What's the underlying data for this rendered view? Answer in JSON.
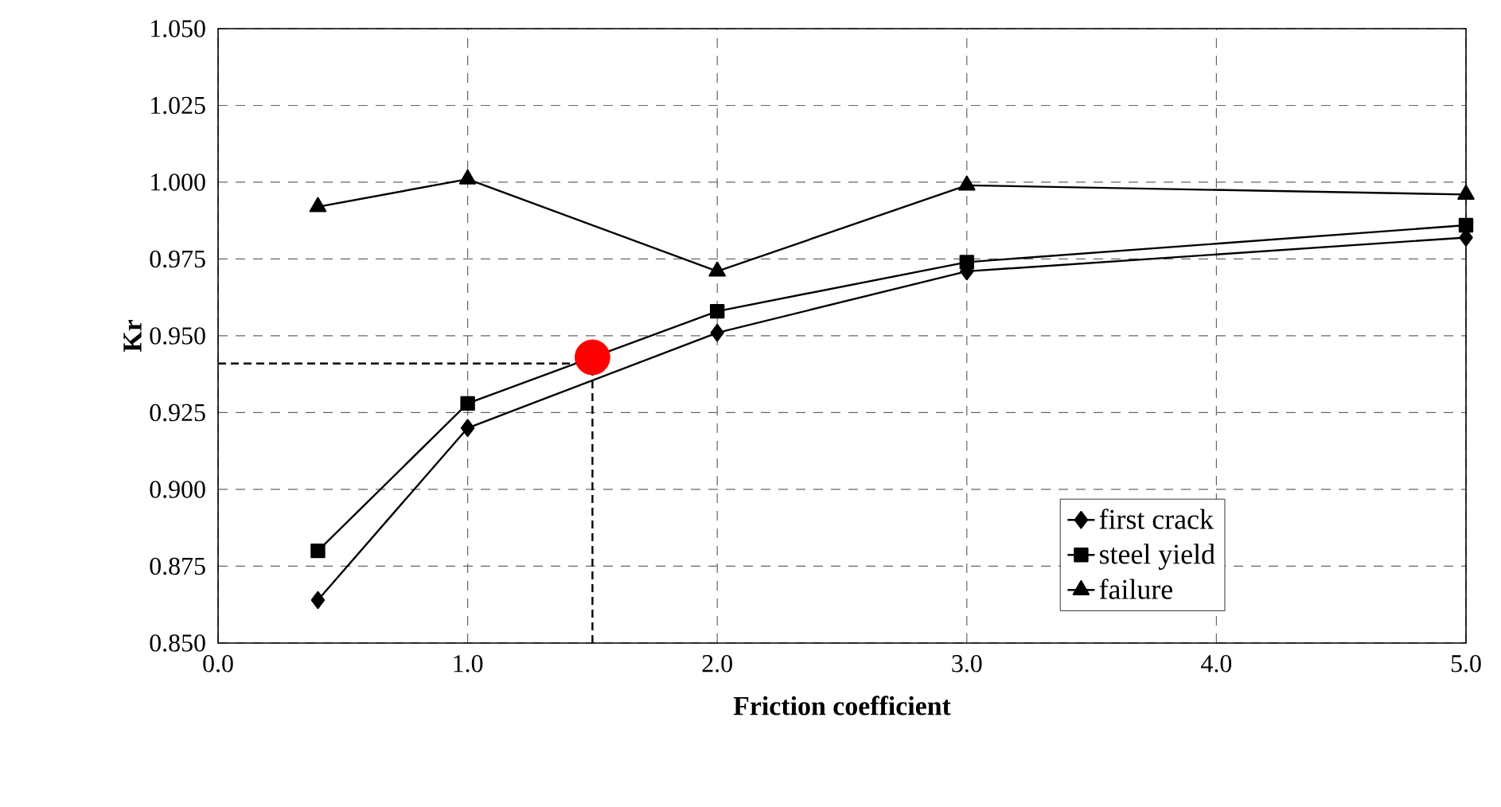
{
  "chart_data": {
    "type": "line",
    "xlabel": "Friction coefficient",
    "ylabel": "Kr",
    "xlim": [
      0,
      5
    ],
    "ylim": [
      0.85,
      1.05
    ],
    "xticks": [
      {
        "value": 0,
        "label": "0.0"
      },
      {
        "value": 1,
        "label": "1.0"
      },
      {
        "value": 2,
        "label": "2.0"
      },
      {
        "value": 3,
        "label": "3.0"
      },
      {
        "value": 4,
        "label": "4.0"
      },
      {
        "value": 5,
        "label": "5.0"
      }
    ],
    "yticks": [
      {
        "value": 0.85,
        "label": "0.850"
      },
      {
        "value": 0.875,
        "label": "0.875"
      },
      {
        "value": 0.9,
        "label": "0.900"
      },
      {
        "value": 0.925,
        "label": "0.925"
      },
      {
        "value": 0.95,
        "label": "0.950"
      },
      {
        "value": 0.975,
        "label": "0.975"
      },
      {
        "value": 1.0,
        "label": "1.000"
      },
      {
        "value": 1.025,
        "label": "1.025"
      },
      {
        "value": 1.05,
        "label": "1.050"
      }
    ],
    "grid": true,
    "legend": "bottom right",
    "series": [
      {
        "name": "first crack",
        "color": "#000000",
        "marker": "diamond",
        "x": [
          0.4,
          1,
          2,
          3,
          5
        ],
        "values": [
          0.864,
          0.92,
          0.951,
          0.971,
          0.982
        ]
      },
      {
        "name": "steel yield",
        "color": "#000000",
        "marker": "square",
        "x": [
          0.4,
          1,
          2,
          3,
          5
        ],
        "values": [
          0.88,
          0.928,
          0.958,
          0.974,
          0.986
        ]
      },
      {
        "name": "failure",
        "color": "#000000",
        "marker": "triangle",
        "x": [
          0.4,
          1,
          2,
          3,
          5
        ],
        "values": [
          0.992,
          1.001,
          0.971,
          0.999,
          0.996
        ]
      },
      {
        "type": "scatter",
        "color": "#ff0000",
        "marker": "circle",
        "x": [
          1.5
        ],
        "values": [
          0.943
        ]
      }
    ],
    "ref_lines": [
      {
        "axis": "x",
        "value": 1.5,
        "line_style": "dashed"
      },
      {
        "axis": "y",
        "value": 0.941,
        "line_style": "dashed"
      }
    ]
  }
}
